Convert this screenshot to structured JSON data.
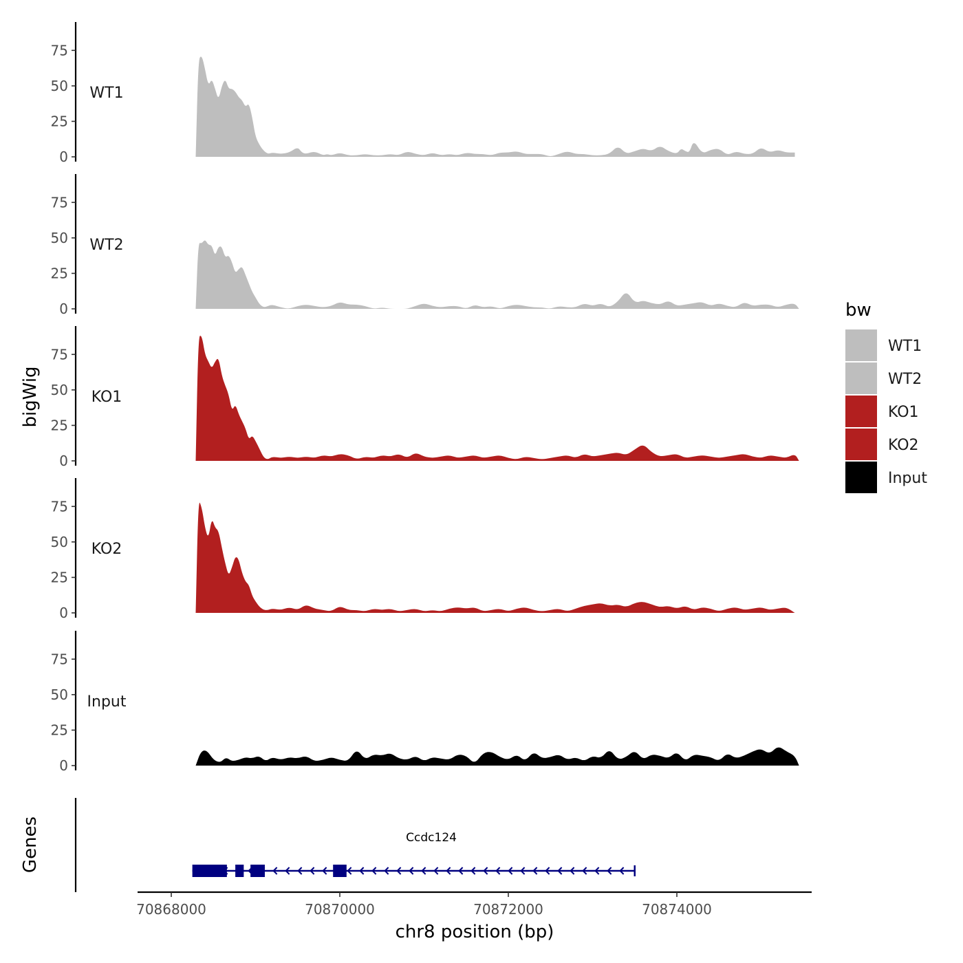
{
  "chart_data": {
    "type": "area",
    "title": "",
    "xlabel": "chr8 position (bp)",
    "ylabel": "bigWig",
    "genes_label": "Genes",
    "xlim": [
      70867600,
      70875600
    ],
    "ylim": [
      0,
      95
    ],
    "xticks": [
      70868000,
      70870000,
      70872000,
      70874000
    ],
    "xtick_labels": [
      "70868000",
      "70870000",
      "70872000",
      "70874000"
    ],
    "yticks": [
      0,
      25,
      50,
      75
    ],
    "ytick_labels": [
      "0",
      "25",
      "50",
      "75"
    ],
    "legend": {
      "title": "bw",
      "position": "right",
      "entries": [
        {
          "label": "WT1",
          "color": "#bebebe"
        },
        {
          "label": "WT2",
          "color": "#bebebe"
        },
        {
          "label": "KO1",
          "color": "#b21f1f"
        },
        {
          "label": "KO2",
          "color": "#b21f1f"
        },
        {
          "label": "Input",
          "color": "#000000"
        }
      ]
    },
    "series": [
      {
        "name": "WT1",
        "color": "#bebebe",
        "x": [
          70868290,
          70868320,
          70868360,
          70868400,
          70868440,
          70868480,
          70868520,
          70868560,
          70868600,
          70868640,
          70868680,
          70868720,
          70868760,
          70868800,
          70868840,
          70868880,
          70868920,
          70868960,
          70869000,
          70869050,
          70869100,
          70869150,
          70869200,
          70869300,
          70869400,
          70869500,
          70869550,
          70869600,
          70869700,
          70869800,
          70869850,
          70869900,
          70870000,
          70870100,
          70870200,
          70870300,
          70870400,
          70870500,
          70870600,
          70870700,
          70870800,
          70870900,
          70871000,
          70871100,
          70871200,
          70871300,
          70871400,
          70871500,
          70871600,
          70871700,
          70871800,
          70871900,
          70872000,
          70872100,
          70872200,
          70872300,
          70872400,
          70872500,
          70872600,
          70872700,
          70872800,
          70872900,
          70873000,
          70873100,
          70873200,
          70873300,
          70873400,
          70873500,
          70873600,
          70873700,
          70873800,
          70873900,
          70874000,
          70874050,
          70874100,
          70874150,
          70874200,
          70874300,
          70874400,
          70874500,
          70874600,
          70874700,
          70874800,
          70874900,
          70875000,
          70875100,
          70875200,
          70875300,
          70875400
        ],
        "y": [
          0,
          68,
          72,
          62,
          50,
          55,
          48,
          40,
          50,
          55,
          48,
          48,
          46,
          42,
          40,
          35,
          38,
          28,
          14,
          8,
          4,
          2,
          3,
          2,
          3,
          7,
          3,
          2,
          4,
          1,
          2,
          1,
          3,
          1,
          1,
          2,
          1,
          1,
          2,
          1,
          4,
          2,
          1,
          3,
          1,
          2,
          1,
          3,
          2,
          2,
          1,
          3,
          3,
          4,
          2,
          2,
          2,
          0,
          2,
          4,
          2,
          2,
          1,
          1,
          2,
          8,
          2,
          4,
          6,
          4,
          8,
          4,
          2,
          6,
          4,
          3,
          12,
          2,
          5,
          6,
          1,
          4,
          2,
          2,
          7,
          3,
          5,
          3,
          3
        ]
      },
      {
        "name": "WT2",
        "color": "#bebebe",
        "x": [
          70868290,
          70868320,
          70868360,
          70868400,
          70868440,
          70868480,
          70868520,
          70868560,
          70868600,
          70868640,
          70868680,
          70868720,
          70868760,
          70868800,
          70868840,
          70868880,
          70868920,
          70868960,
          70869000,
          70869050,
          70869100,
          70869150,
          70869200,
          70869300,
          70869400,
          70869500,
          70869600,
          70869700,
          70869800,
          70869900,
          70870000,
          70870100,
          70870200,
          70870300,
          70870400,
          70870500,
          70870600,
          70870700,
          70870800,
          70870900,
          70871000,
          70871100,
          70871200,
          70871300,
          70871400,
          70871500,
          70871600,
          70871700,
          70871800,
          70871900,
          70872000,
          70872100,
          70872200,
          70872300,
          70872400,
          70872500,
          70872600,
          70872700,
          70872800,
          70872900,
          70873000,
          70873100,
          70873200,
          70873300,
          70873400,
          70873500,
          70873600,
          70873700,
          70873800,
          70873900,
          70874000,
          70874100,
          70874200,
          70874300,
          70874400,
          70874500,
          70874600,
          70874700,
          70874800,
          70874900,
          70875000,
          70875100,
          70875200,
          70875300,
          70875400,
          70875450
        ],
        "y": [
          0,
          47,
          46,
          49,
          45,
          45,
          37,
          44,
          44,
          36,
          38,
          33,
          25,
          28,
          30,
          24,
          18,
          12,
          8,
          3,
          1,
          2,
          3,
          1,
          0,
          2,
          3,
          2,
          1,
          2,
          5,
          3,
          3,
          2,
          0,
          1,
          0,
          0,
          0,
          2,
          4,
          2,
          1,
          2,
          2,
          0,
          3,
          1,
          2,
          0,
          2,
          3,
          2,
          1,
          1,
          0,
          2,
          1,
          1,
          4,
          2,
          4,
          1,
          5,
          13,
          4,
          6,
          4,
          3,
          6,
          2,
          3,
          4,
          5,
          2,
          4,
          2,
          1,
          5,
          2,
          3,
          3,
          1,
          3,
          4,
          0
        ]
      },
      {
        "name": "KO1",
        "color": "#b21f1f",
        "x": [
          70868290,
          70868320,
          70868360,
          70868400,
          70868440,
          70868480,
          70868520,
          70868560,
          70868600,
          70868640,
          70868680,
          70868720,
          70868760,
          70868800,
          70868840,
          70868880,
          70868920,
          70868960,
          70869000,
          70869050,
          70869100,
          70869150,
          70869200,
          70869300,
          70869400,
          70869500,
          70869600,
          70869700,
          70869800,
          70869900,
          70870000,
          70870100,
          70870200,
          70870300,
          70870400,
          70870500,
          70870600,
          70870700,
          70870800,
          70870900,
          70871000,
          70871100,
          70871200,
          70871300,
          70871400,
          70871500,
          70871600,
          70871700,
          70871800,
          70871900,
          70872000,
          70872100,
          70872200,
          70872300,
          70872400,
          70872500,
          70872600,
          70872700,
          70872800,
          70872900,
          70873000,
          70873100,
          70873200,
          70873300,
          70873400,
          70873500,
          70873600,
          70873700,
          70873800,
          70873900,
          70874000,
          70874100,
          70874200,
          70874300,
          70874400,
          70874500,
          70874600,
          70874700,
          70874800,
          70874900,
          70875000,
          70875100,
          70875200,
          70875300,
          70875400,
          70875450
        ],
        "y": [
          0,
          87,
          89,
          75,
          70,
          65,
          70,
          73,
          60,
          53,
          47,
          35,
          40,
          33,
          28,
          23,
          15,
          18,
          14,
          8,
          2,
          1,
          3,
          2,
          3,
          2,
          3,
          2,
          4,
          3,
          5,
          4,
          1,
          3,
          2,
          4,
          3,
          5,
          2,
          6,
          3,
          2,
          3,
          4,
          2,
          3,
          4,
          2,
          3,
          4,
          2,
          1,
          3,
          2,
          1,
          2,
          3,
          4,
          2,
          5,
          3,
          4,
          5,
          6,
          4,
          8,
          12,
          6,
          3,
          4,
          5,
          2,
          3,
          4,
          3,
          2,
          3,
          4,
          5,
          3,
          2,
          4,
          3,
          2,
          5,
          0
        ]
      },
      {
        "name": "KO2",
        "color": "#b21f1f",
        "x": [
          70868290,
          70868320,
          70868360,
          70868400,
          70868440,
          70868480,
          70868520,
          70868560,
          70868600,
          70868640,
          70868680,
          70868720,
          70868760,
          70868800,
          70868840,
          70868880,
          70868920,
          70868960,
          70869000,
          70869050,
          70869100,
          70869150,
          70869200,
          70869300,
          70869400,
          70869500,
          70869600,
          70869700,
          70869800,
          70869900,
          70870000,
          70870100,
          70870200,
          70870300,
          70870400,
          70870500,
          70870600,
          70870700,
          70870800,
          70870900,
          70871000,
          70871100,
          70871200,
          70871300,
          70871400,
          70871500,
          70871600,
          70871700,
          70871800,
          70871900,
          70872000,
          70872100,
          70872200,
          70872300,
          70872400,
          70872500,
          70872600,
          70872700,
          70872800,
          70872900,
          70873000,
          70873100,
          70873200,
          70873300,
          70873400,
          70873500,
          70873600,
          70873700,
          70873800,
          70873900,
          70874000,
          70874100,
          70874200,
          70874300,
          70874400,
          70874500,
          70874600,
          70874700,
          70874800,
          70874900,
          70875000,
          70875100,
          70875200,
          70875300,
          70875400
        ],
        "y": [
          0,
          80,
          75,
          60,
          52,
          67,
          60,
          58,
          46,
          35,
          26,
          32,
          40,
          38,
          28,
          22,
          20,
          12,
          8,
          4,
          2,
          2,
          3,
          2,
          4,
          2,
          6,
          3,
          2,
          1,
          5,
          2,
          2,
          1,
          3,
          2,
          3,
          1,
          2,
          3,
          1,
          2,
          1,
          3,
          4,
          3,
          4,
          1,
          2,
          3,
          1,
          3,
          4,
          2,
          1,
          2,
          3,
          1,
          3,
          5,
          6,
          7,
          5,
          6,
          4,
          7,
          8,
          6,
          4,
          5,
          3,
          5,
          2,
          4,
          3,
          1,
          3,
          4,
          2,
          3,
          4,
          2,
          3,
          4,
          0
        ]
      },
      {
        "name": "Input",
        "color": "#000000",
        "x": [
          70868290,
          70868350,
          70868420,
          70868500,
          70868580,
          70868650,
          70868720,
          70868800,
          70868880,
          70868960,
          70869040,
          70869120,
          70869200,
          70869300,
          70869400,
          70869500,
          70869600,
          70869700,
          70869800,
          70869900,
          70870000,
          70870100,
          70870200,
          70870300,
          70870400,
          70870500,
          70870600,
          70870700,
          70870800,
          70870900,
          70871000,
          70871100,
          70871200,
          70871300,
          70871400,
          70871500,
          70871600,
          70871700,
          70871800,
          70871900,
          70872000,
          70872100,
          70872200,
          70872300,
          70872400,
          70872500,
          70872600,
          70872700,
          70872800,
          70872900,
          70873000,
          70873100,
          70873200,
          70873300,
          70873400,
          70873500,
          70873600,
          70873700,
          70873800,
          70873900,
          70874000,
          70874100,
          70874200,
          70874300,
          70874400,
          70874500,
          70874600,
          70874700,
          70874800,
          70874900,
          70875000,
          70875100,
          70875200,
          70875300,
          70875400,
          70875450
        ],
        "y": [
          0,
          10,
          11,
          4,
          2,
          6,
          3,
          4,
          6,
          5,
          7,
          3,
          6,
          4,
          6,
          5,
          7,
          3,
          4,
          6,
          4,
          3,
          12,
          4,
          8,
          7,
          9,
          5,
          4,
          7,
          3,
          6,
          5,
          4,
          8,
          7,
          1,
          9,
          10,
          6,
          4,
          8,
          3,
          10,
          5,
          6,
          8,
          4,
          6,
          3,
          7,
          5,
          12,
          4,
          6,
          11,
          4,
          8,
          7,
          5,
          10,
          3,
          8,
          7,
          6,
          3,
          9,
          5,
          7,
          10,
          12,
          8,
          14,
          10,
          7,
          0
        ]
      }
    ],
    "genes": [
      {
        "name": "Ccdc124",
        "strand": "-",
        "start": 70868250,
        "end": 70873500,
        "exons": [
          [
            70868250,
            70868660
          ],
          [
            70868760,
            70868860
          ],
          [
            70868940,
            70869110
          ],
          [
            70869920,
            70870080
          ]
        ]
      }
    ]
  }
}
